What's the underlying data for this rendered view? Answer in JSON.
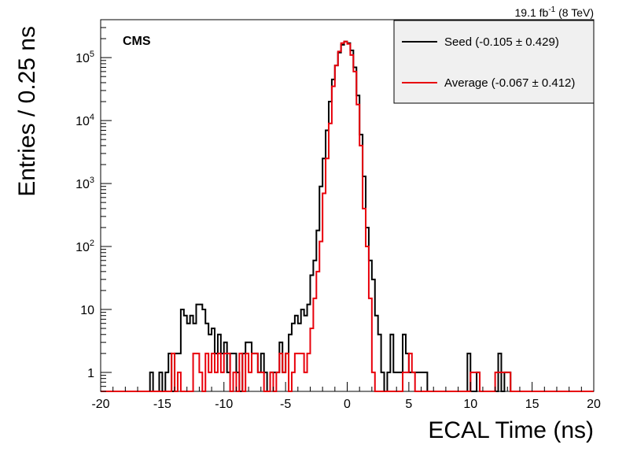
{
  "chart_data": {
    "type": "histogram",
    "xlabel": "ECAL Time (ns)",
    "ylabel": "Entries / 0.25 ns",
    "xlim": [
      -20,
      20
    ],
    "ylim": [
      0.5,
      400000
    ],
    "yscale": "log",
    "bin_width": 0.25,
    "x_ticks": [
      -20,
      -15,
      -10,
      -5,
      0,
      5,
      10,
      15,
      20
    ],
    "x_tick_labels": [
      "-20",
      "-15",
      "-10",
      "-5",
      "0",
      "5",
      "10",
      "15",
      "20"
    ],
    "y_ticks": [
      {
        "value": 1,
        "label": "1"
      },
      {
        "value": 10,
        "label": "10"
      },
      {
        "value": 100,
        "base": "10",
        "exp": "2"
      },
      {
        "value": 1000,
        "base": "10",
        "exp": "3"
      },
      {
        "value": 10000,
        "base": "10",
        "exp": "4"
      },
      {
        "value": 100000,
        "base": "10",
        "exp": "5"
      }
    ],
    "annotations": {
      "experiment": "CMS",
      "lumi_value": "19.1 fb",
      "lumi_exp": "-1",
      "lumi_energy": " (8 TeV)"
    },
    "legend_position": "top-right",
    "series": [
      {
        "name": "Seed (-0.105 ± 0.429)",
        "color": "#000000",
        "points": [
          [
            -16.0,
            1
          ],
          [
            -15.25,
            1
          ],
          [
            -14.75,
            1
          ],
          [
            -14.5,
            2
          ],
          [
            -14.0,
            2
          ],
          [
            -13.75,
            2
          ],
          [
            -13.5,
            10
          ],
          [
            -13.25,
            8
          ],
          [
            -13.0,
            6
          ],
          [
            -12.75,
            8
          ],
          [
            -12.5,
            6
          ],
          [
            -12.25,
            12
          ],
          [
            -12.0,
            12
          ],
          [
            -11.75,
            10
          ],
          [
            -11.5,
            6
          ],
          [
            -11.25,
            4
          ],
          [
            -11.0,
            5
          ],
          [
            -10.75,
            2
          ],
          [
            -10.5,
            4
          ],
          [
            -10.25,
            2
          ],
          [
            -10.0,
            3
          ],
          [
            -9.75,
            1
          ],
          [
            -9.5,
            2
          ],
          [
            -9.25,
            2
          ],
          [
            -9.0,
            1
          ],
          [
            -8.5,
            2
          ],
          [
            -8.25,
            3
          ],
          [
            -8.0,
            3
          ],
          [
            -7.75,
            2
          ],
          [
            -7.5,
            2
          ],
          [
            -7.25,
            1
          ],
          [
            -7.0,
            2
          ],
          [
            -6.75,
            1
          ],
          [
            -6.25,
            1
          ],
          [
            -6.0,
            1
          ],
          [
            -5.75,
            1
          ],
          [
            -5.5,
            3
          ],
          [
            -5.25,
            1
          ],
          [
            -5.0,
            2
          ],
          [
            -4.75,
            4
          ],
          [
            -4.5,
            6
          ],
          [
            -4.25,
            8
          ],
          [
            -4.0,
            6
          ],
          [
            -3.75,
            10
          ],
          [
            -3.5,
            8
          ],
          [
            -3.25,
            12
          ],
          [
            -3.0,
            35
          ],
          [
            -2.75,
            60
          ],
          [
            -2.5,
            180
          ],
          [
            -2.25,
            900
          ],
          [
            -2.0,
            2500
          ],
          [
            -1.75,
            7000
          ],
          [
            -1.5,
            20000
          ],
          [
            -1.25,
            45000
          ],
          [
            -1.0,
            75000
          ],
          [
            -0.75,
            120000
          ],
          [
            -0.5,
            160000
          ],
          [
            -0.25,
            180000
          ],
          [
            0.0,
            170000
          ],
          [
            0.25,
            130000
          ],
          [
            0.5,
            70000
          ],
          [
            0.75,
            25000
          ],
          [
            1.0,
            6000
          ],
          [
            1.25,
            1300
          ],
          [
            1.5,
            200
          ],
          [
            1.75,
            60
          ],
          [
            2.0,
            30
          ],
          [
            2.25,
            8
          ],
          [
            2.5,
            4
          ],
          [
            2.75,
            1
          ],
          [
            3.25,
            1
          ],
          [
            3.5,
            4
          ],
          [
            3.75,
            1
          ],
          [
            4.0,
            1
          ],
          [
            4.25,
            1
          ],
          [
            4.5,
            4
          ],
          [
            4.75,
            2
          ],
          [
            5.0,
            1
          ],
          [
            5.25,
            1
          ],
          [
            5.5,
            1
          ],
          [
            5.75,
            1
          ],
          [
            6.0,
            1
          ],
          [
            6.25,
            1
          ],
          [
            9.75,
            2
          ],
          [
            10.5,
            1
          ],
          [
            12.25,
            2
          ],
          [
            12.75,
            1
          ],
          [
            13.0,
            1
          ]
        ]
      },
      {
        "name": "Average (-0.067 ± 0.412)",
        "color": "#e8000b",
        "points": [
          [
            -14.25,
            2
          ],
          [
            -13.75,
            1
          ],
          [
            -12.5,
            2
          ],
          [
            -12.25,
            2
          ],
          [
            -12.0,
            1
          ],
          [
            -11.5,
            2
          ],
          [
            -11.25,
            1
          ],
          [
            -11.0,
            2
          ],
          [
            -10.75,
            1
          ],
          [
            -10.5,
            2
          ],
          [
            -10.25,
            1
          ],
          [
            -10.0,
            2
          ],
          [
            -9.75,
            2
          ],
          [
            -9.25,
            1
          ],
          [
            -8.75,
            2
          ],
          [
            -8.25,
            2
          ],
          [
            -8.0,
            1
          ],
          [
            -7.75,
            2
          ],
          [
            -7.5,
            2
          ],
          [
            -7.25,
            1
          ],
          [
            -7.0,
            1
          ],
          [
            -6.25,
            1
          ],
          [
            -5.75,
            1
          ],
          [
            -5.5,
            2
          ],
          [
            -5.25,
            1
          ],
          [
            -5.0,
            2
          ],
          [
            -4.5,
            1
          ],
          [
            -4.25,
            2
          ],
          [
            -4.0,
            2
          ],
          [
            -3.75,
            2
          ],
          [
            -3.5,
            1
          ],
          [
            -3.25,
            2
          ],
          [
            -3.0,
            5
          ],
          [
            -2.75,
            15
          ],
          [
            -2.5,
            40
          ],
          [
            -2.25,
            120
          ],
          [
            -2.0,
            700
          ],
          [
            -1.75,
            2500
          ],
          [
            -1.5,
            9000
          ],
          [
            -1.25,
            35000
          ],
          [
            -1.0,
            75000
          ],
          [
            -0.75,
            125000
          ],
          [
            -0.5,
            170000
          ],
          [
            -0.25,
            180000
          ],
          [
            0.0,
            165000
          ],
          [
            0.25,
            110000
          ],
          [
            0.5,
            60000
          ],
          [
            0.75,
            18000
          ],
          [
            1.0,
            4000
          ],
          [
            1.25,
            400
          ],
          [
            1.5,
            100
          ],
          [
            1.75,
            15
          ],
          [
            2.0,
            1
          ],
          [
            4.5,
            1
          ],
          [
            4.75,
            1
          ],
          [
            5.0,
            2
          ],
          [
            5.25,
            1
          ],
          [
            10.0,
            1
          ],
          [
            10.25,
            1
          ],
          [
            10.5,
            1
          ],
          [
            12.0,
            1
          ],
          [
            12.25,
            1
          ],
          [
            12.5,
            1
          ],
          [
            12.75,
            1
          ],
          [
            13.0,
            1
          ]
        ]
      }
    ]
  }
}
